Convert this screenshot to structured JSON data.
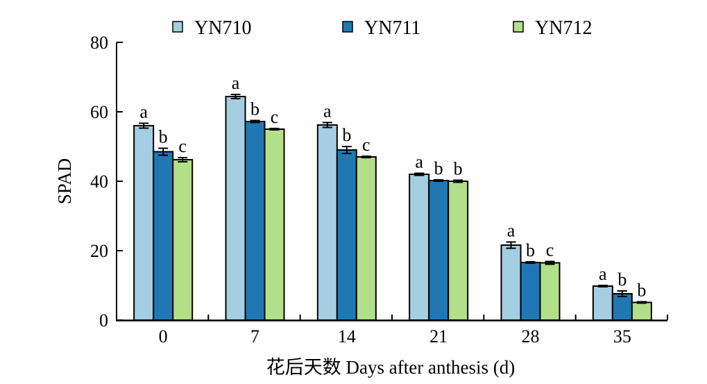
{
  "chart_data": {
    "type": "bar",
    "title": "",
    "xlabel": "花后天数 Days after anthesis (d)",
    "ylabel": "SPAD",
    "ylim": [
      0,
      80
    ],
    "yticks": [
      0,
      20,
      40,
      60,
      80
    ],
    "categories": [
      "0",
      "7",
      "14",
      "21",
      "28",
      "35"
    ],
    "legend_position": "top",
    "series": [
      {
        "name": "YN710",
        "color": "#a6cee3",
        "values": [
          56.0,
          64.4,
          56.2,
          42.0,
          21.6,
          9.8
        ],
        "errors": [
          0.7,
          0.6,
          0.7,
          0.3,
          0.9,
          0.2
        ],
        "letters": [
          "a",
          "a",
          "a",
          "a",
          "a",
          "a"
        ]
      },
      {
        "name": "YN711",
        "color": "#1f78b4",
        "values": [
          48.5,
          57.2,
          49.0,
          40.2,
          16.6,
          7.6
        ],
        "errors": [
          1.0,
          0.3,
          1.0,
          0.2,
          0.2,
          0.8
        ],
        "letters": [
          "b",
          "b",
          "b",
          "b",
          "b",
          "b"
        ]
      },
      {
        "name": "YN712",
        "color": "#b2df8a",
        "values": [
          46.2,
          55.0,
          47.0,
          40.0,
          16.5,
          5.1
        ],
        "errors": [
          0.6,
          0.2,
          0.2,
          0.3,
          0.4,
          0.2
        ],
        "letters": [
          "c",
          "c",
          "c",
          "b",
          "c",
          "b"
        ]
      }
    ]
  }
}
